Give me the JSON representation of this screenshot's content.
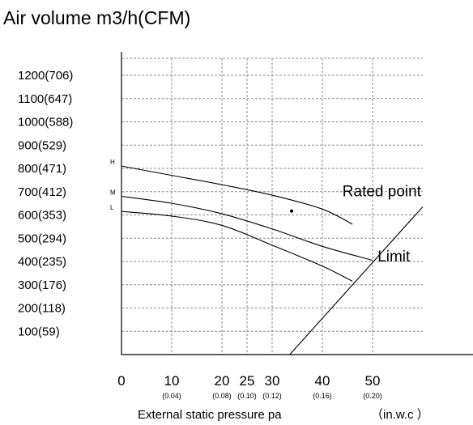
{
  "chart_data": {
    "type": "line",
    "title": "Air volume m3/h(CFM)",
    "xlabel": "External static pressure pa",
    "xunit_label": "（in.w.c ）",
    "x_ticks": [
      {
        "value": 0,
        "label": "0",
        "sub": ""
      },
      {
        "value": 10,
        "label": "10",
        "sub": "(0.04)"
      },
      {
        "value": 20,
        "label": "20",
        "sub": "(0.08)"
      },
      {
        "value": 25,
        "label": "25",
        "sub": "(0.10)"
      },
      {
        "value": 30,
        "label": "30",
        "sub": "(0.12)"
      },
      {
        "value": 40,
        "label": "40",
        "sub": "(0.16)"
      },
      {
        "value": 50,
        "label": "50",
        "sub": "(0.20)"
      }
    ],
    "y_ticks": [
      {
        "value": 100,
        "label": "100(59)"
      },
      {
        "value": 200,
        "label": "200(118)"
      },
      {
        "value": 300,
        "label": "300(176)"
      },
      {
        "value": 400,
        "label": "400(235)"
      },
      {
        "value": 500,
        "label": "500(294)"
      },
      {
        "value": 600,
        "label": "600(353)"
      },
      {
        "value": 700,
        "label": "700(412)"
      },
      {
        "value": 800,
        "label": "800(471)"
      },
      {
        "value": 900,
        "label": "900(529)"
      },
      {
        "value": 1000,
        "label": "1000(588)"
      },
      {
        "value": 1100,
        "label": "1100(647)"
      },
      {
        "value": 1200,
        "label": "1200(706)"
      }
    ],
    "xlim": [
      0,
      60
    ],
    "ylim": [
      0,
      1300
    ],
    "grid": true,
    "series": [
      {
        "name": "H",
        "points": [
          [
            0,
            810
          ],
          [
            10,
            770
          ],
          [
            20,
            730
          ],
          [
            30,
            685
          ],
          [
            40,
            625
          ],
          [
            46,
            560
          ]
        ]
      },
      {
        "name": "M",
        "points": [
          [
            0,
            680
          ],
          [
            10,
            650
          ],
          [
            20,
            605
          ],
          [
            30,
            540
          ],
          [
            40,
            465
          ],
          [
            50,
            405
          ]
        ]
      },
      {
        "name": "L",
        "points": [
          [
            0,
            615
          ],
          [
            10,
            595
          ],
          [
            20,
            555
          ],
          [
            30,
            470
          ],
          [
            40,
            380
          ],
          [
            46,
            315
          ]
        ]
      },
      {
        "name": "Limit",
        "points": [
          [
            33.5,
            0
          ],
          [
            60,
            635
          ]
        ]
      }
    ],
    "rated_point": {
      "x": 40,
      "y": 620
    },
    "annotations": [
      {
        "text": "Rated point",
        "x": 44,
        "y": 680
      },
      {
        "text": "Limit",
        "x": 51,
        "y": 400
      }
    ]
  }
}
